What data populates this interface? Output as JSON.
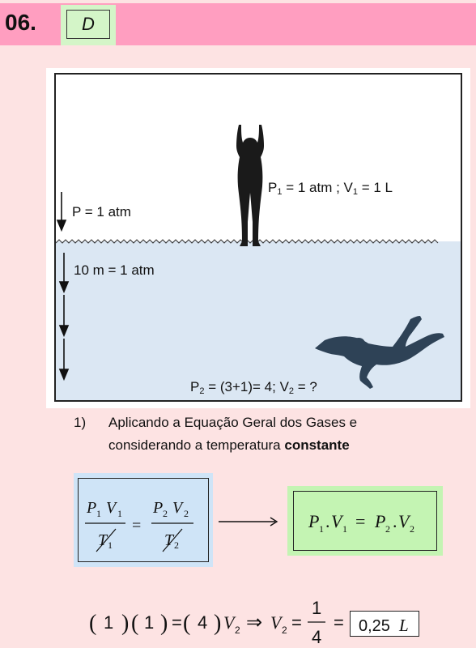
{
  "header": {
    "number": "06.",
    "answer": "D"
  },
  "figure": {
    "surface_pressure": "P = 1 atm",
    "depth_pressure": "10 m = 1 atm",
    "state1": {
      "p_label": "P",
      "p_sub": "1",
      "p_val": " = 1 atm ;  ",
      "v_label": "V",
      "v_sub": "1",
      "v_val": " = 1 L"
    },
    "state2": {
      "p_label": "P",
      "p_sub": "2",
      "p_val": " = (3+1)= 4;  ",
      "v_label": "V",
      "v_sub": "2",
      "v_val": " = ?"
    }
  },
  "step1": {
    "num": "1)",
    "line1": "Aplicando a Equação Geral dos Gases e",
    "line2_normal": "considerando a temperatura ",
    "line2_bold": "constante"
  },
  "general_equation": {
    "p1": "P",
    "s1": "1",
    "v1": "V",
    "t1": "T",
    "p2": "P",
    "s2": "2",
    "v2": "V",
    "t2": "T",
    "eq": "="
  },
  "simplified_equation": {
    "p": "P",
    "v": "V",
    "s1": "1",
    "s2": "2",
    "dot": ".",
    "eq": "="
  },
  "final_calc": {
    "lhs1": "1",
    "lhs2": "1",
    "lhs3": "4",
    "v": "V",
    "sub": "2",
    "implies": "⇒",
    "eq": "=",
    "num": "1",
    "den": "4",
    "result": "0,25",
    "unit": "L"
  }
}
